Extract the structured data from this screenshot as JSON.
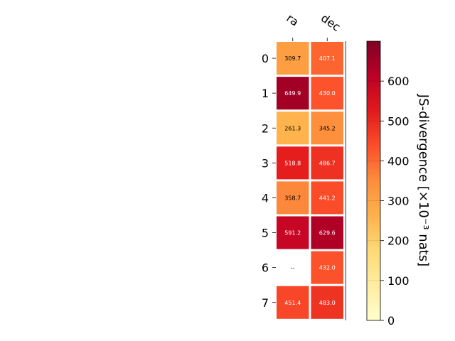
{
  "chart_data": {
    "type": "heatmap",
    "columns": [
      "ra",
      "dec"
    ],
    "rows": [
      "0",
      "1",
      "2",
      "3",
      "4",
      "5",
      "6",
      "7"
    ],
    "values": [
      [
        309.7,
        407.1
      ],
      [
        649.9,
        430.0
      ],
      [
        261.3,
        345.2
      ],
      [
        518.8,
        486.7
      ],
      [
        358.7,
        441.2
      ],
      [
        591.2,
        629.6
      ],
      [
        null,
        432.0
      ],
      [
        451.4,
        483.0
      ]
    ],
    "cell_labels": [
      [
        "309.7",
        "407.1"
      ],
      [
        "649.9",
        "430.0"
      ],
      [
        "261.3",
        "345.2"
      ],
      [
        "518.8",
        "486.7"
      ],
      [
        "358.7",
        "441.2"
      ],
      [
        "591.2",
        "629.6"
      ],
      [
        "--",
        "432.0"
      ],
      [
        "451.4",
        "483.0"
      ]
    ],
    "colorbar": {
      "label": "JS-divergence [×10⁻³ nats]",
      "range": [
        0,
        700
      ],
      "ticks": [
        "0",
        "100",
        "200",
        "300",
        "400",
        "500",
        "600"
      ],
      "colormap": "YlOrRd"
    }
  }
}
